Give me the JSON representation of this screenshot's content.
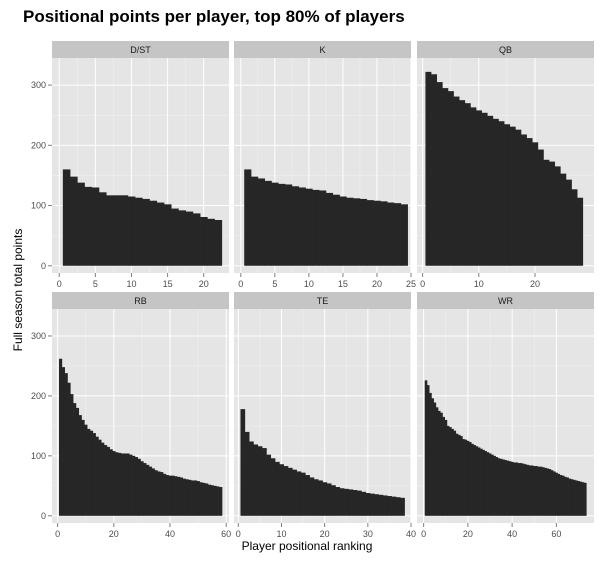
{
  "title": "Positional points per player, top 80% of players",
  "xlabel": "Player positional ranking",
  "ylabel": "Full season total points",
  "colors": {
    "panel_background": "#e5e5e5",
    "strip_background": "#c5c5c5",
    "grid_major": "#ffffff",
    "bar_fill": "#262626"
  },
  "chart_data": {
    "type": "bar",
    "title": "Positional points per player, top 80% of players",
    "xlabel": "Player positional ranking",
    "ylabel": "Full season total points",
    "ylim": [
      -12,
      345
    ],
    "y_ticks": [
      0,
      100,
      200,
      300
    ],
    "grid": true,
    "layout": "facet grid, 2 rows x 3 columns, shared y axis, free x axes",
    "panels": [
      {
        "name": "D/ST",
        "xlim": [
          -1,
          23.5
        ],
        "x_ticks": [
          0,
          5,
          10,
          15,
          20
        ],
        "x": [
          1,
          2,
          3,
          4,
          5,
          6,
          7,
          8,
          9,
          10,
          11,
          12,
          13,
          14,
          15,
          16,
          17,
          18,
          19,
          20,
          21,
          22
        ],
        "values": [
          160,
          148,
          138,
          131,
          130,
          122,
          117,
          117,
          117,
          115,
          113,
          111,
          108,
          105,
          102,
          95,
          92,
          90,
          87,
          81,
          78,
          76
        ]
      },
      {
        "name": "K",
        "xlim": [
          -1,
          25
        ],
        "x_ticks": [
          0,
          5,
          10,
          15,
          20,
          25
        ],
        "x": [
          1,
          2,
          3,
          4,
          5,
          6,
          7,
          8,
          9,
          10,
          11,
          12,
          13,
          14,
          15,
          16,
          17,
          18,
          19,
          20,
          21,
          22,
          23,
          24
        ],
        "values": [
          160,
          148,
          145,
          141,
          138,
          136,
          135,
          132,
          130,
          128,
          126,
          125,
          121,
          118,
          115,
          113,
          112,
          111,
          109,
          108,
          107,
          105,
          104,
          102
        ]
      },
      {
        "name": "QB",
        "xlim": [
          -1,
          30.5
        ],
        "x_ticks": [
          0,
          10,
          20
        ],
        "x": [
          1,
          2,
          3,
          4,
          5,
          6,
          7,
          8,
          9,
          10,
          11,
          12,
          13,
          14,
          15,
          16,
          17,
          18,
          19,
          20,
          21,
          22,
          23,
          24,
          25,
          26,
          27,
          28
        ],
        "values": [
          322,
          318,
          305,
          295,
          290,
          281,
          275,
          270,
          263,
          258,
          254,
          249,
          244,
          240,
          235,
          231,
          226,
          218,
          212,
          205,
          193,
          176,
          173,
          165,
          153,
          143,
          127,
          113
        ]
      },
      {
        "name": "RB",
        "xlim": [
          -2,
          61
        ],
        "x_ticks": [
          0,
          20,
          40,
          60
        ],
        "x": [
          1,
          2,
          3,
          4,
          5,
          6,
          7,
          8,
          9,
          10,
          11,
          12,
          13,
          14,
          15,
          16,
          17,
          18,
          19,
          20,
          21,
          22,
          23,
          24,
          25,
          26,
          27,
          28,
          29,
          30,
          31,
          32,
          33,
          34,
          35,
          36,
          37,
          38,
          39,
          40,
          41,
          42,
          43,
          44,
          45,
          46,
          47,
          48,
          49,
          50,
          51,
          52,
          53,
          54,
          55,
          56,
          57,
          58
        ],
        "values": [
          262,
          248,
          238,
          222,
          203,
          188,
          180,
          168,
          160,
          152,
          145,
          142,
          138,
          132,
          127,
          122,
          118,
          115,
          111,
          108,
          106,
          105,
          104,
          104,
          104,
          102,
          100,
          98,
          95,
          91,
          88,
          85,
          82,
          79,
          76,
          74,
          73,
          70,
          68,
          67,
          67,
          66,
          65,
          64,
          62,
          61,
          60,
          59,
          59,
          58,
          56,
          55,
          54,
          52,
          51,
          50,
          49,
          48
        ]
      },
      {
        "name": "TE",
        "xlim": [
          -1,
          40
        ],
        "x_ticks": [
          0,
          10,
          20,
          30,
          40
        ],
        "x": [
          1,
          2,
          3,
          4,
          5,
          6,
          7,
          8,
          9,
          10,
          11,
          12,
          13,
          14,
          15,
          16,
          17,
          18,
          19,
          20,
          21,
          22,
          23,
          24,
          25,
          26,
          27,
          28,
          29,
          30,
          31,
          32,
          33,
          34,
          35,
          36,
          37,
          38
        ],
        "values": [
          178,
          140,
          124,
          119,
          116,
          113,
          102,
          96,
          90,
          86,
          83,
          80,
          77,
          74,
          72,
          68,
          64,
          61,
          59,
          56,
          54,
          51,
          48,
          46,
          45,
          44,
          43,
          42,
          40,
          38,
          37,
          36,
          35,
          34,
          33,
          32,
          31,
          30
        ]
      },
      {
        "name": "WR",
        "xlim": [
          -3,
          77
        ],
        "x_ticks": [
          0,
          20,
          40,
          60
        ],
        "x": [
          1,
          2,
          3,
          4,
          5,
          6,
          7,
          8,
          9,
          10,
          11,
          12,
          13,
          14,
          15,
          16,
          17,
          18,
          19,
          20,
          21,
          22,
          23,
          24,
          25,
          26,
          27,
          28,
          29,
          30,
          31,
          32,
          33,
          34,
          35,
          36,
          37,
          38,
          39,
          40,
          41,
          42,
          43,
          44,
          45,
          46,
          47,
          48,
          49,
          50,
          51,
          52,
          53,
          54,
          55,
          56,
          57,
          58,
          59,
          60,
          61,
          62,
          63,
          64,
          65,
          66,
          67,
          68,
          69,
          70,
          71,
          72,
          73
        ],
        "values": [
          226,
          218,
          205,
          196,
          189,
          181,
          175,
          172,
          165,
          160,
          150,
          148,
          145,
          142,
          137,
          135,
          133,
          128,
          127,
          125,
          123,
          120,
          118,
          116,
          114,
          112,
          110,
          108,
          106,
          104,
          102,
          100,
          98,
          96,
          95,
          94,
          93,
          92,
          91,
          90,
          89,
          89,
          88,
          88,
          87,
          86,
          85,
          84,
          84,
          83,
          83,
          82,
          82,
          81,
          80,
          79,
          78,
          76,
          74,
          72,
          70,
          68,
          67,
          65,
          64,
          62,
          61,
          60,
          59,
          58,
          57,
          56,
          55
        ]
      }
    ]
  }
}
